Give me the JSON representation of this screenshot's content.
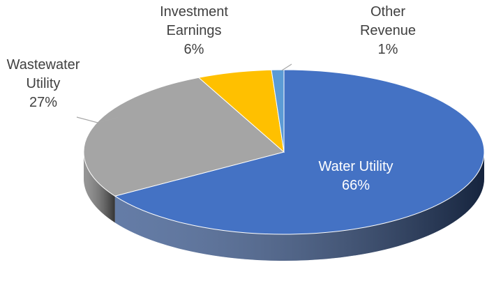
{
  "chart_data": {
    "type": "pie",
    "categories": [
      "Water Utility",
      "Wastewater Utility",
      "Investment Earnings",
      "Other Revenue"
    ],
    "values": [
      66,
      27,
      6,
      1
    ],
    "value_labels": [
      "66%",
      "27%",
      "6%",
      "1%"
    ],
    "colors": [
      "#4472c4",
      "#a5a5a5",
      "#ffc000",
      "#5b9bd5"
    ]
  }
}
